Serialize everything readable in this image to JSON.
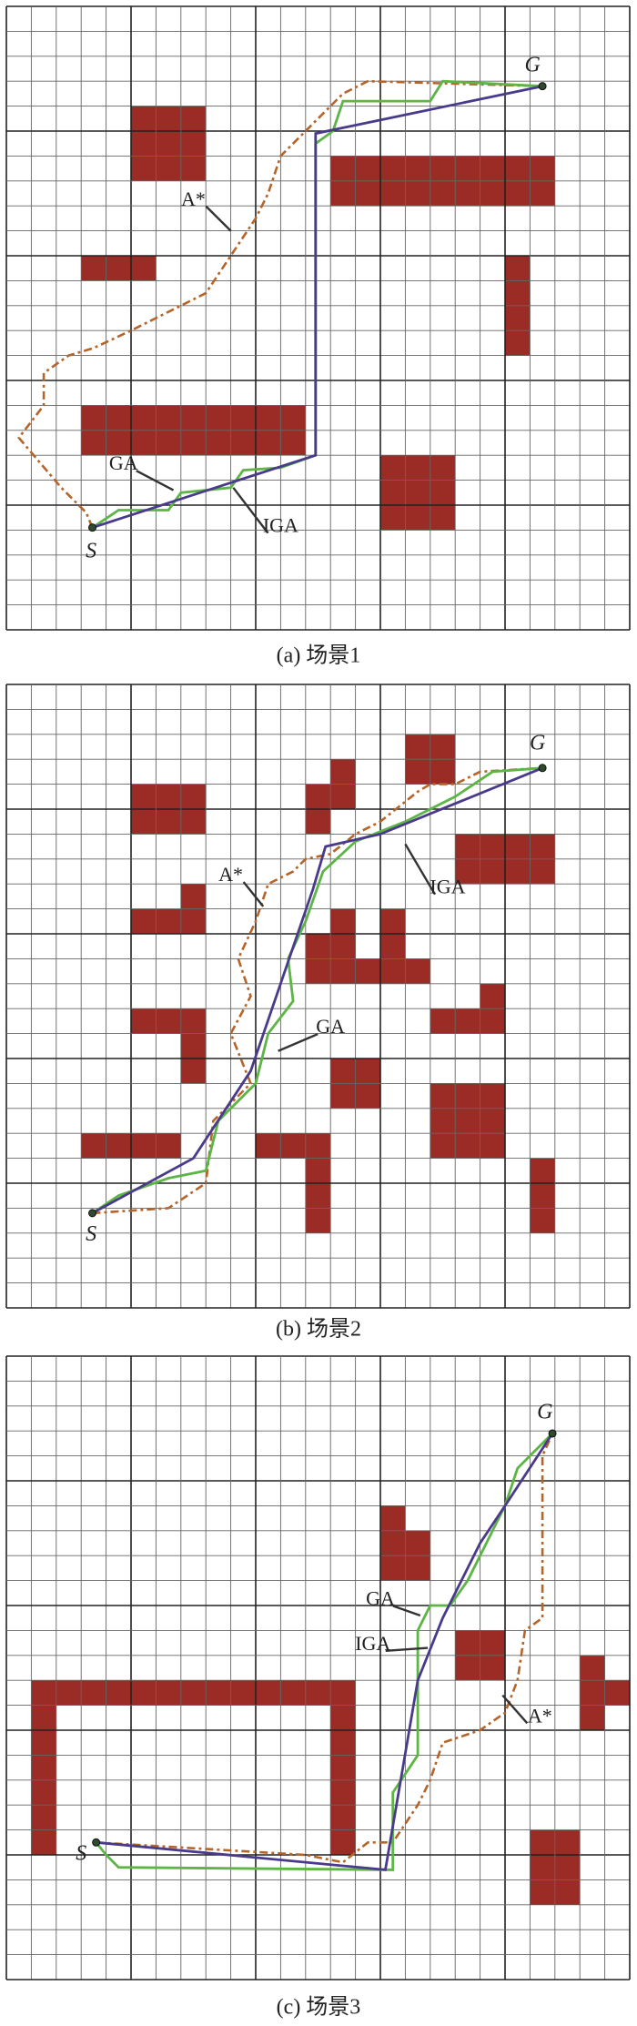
{
  "panels": [
    {
      "caption": "(a) 场景1",
      "labels": {
        "start": "S",
        "goal": "G",
        "astar": "A*",
        "ga": "GA",
        "iga": "IGA"
      }
    },
    {
      "caption": "(b) 场景2",
      "labels": {
        "start": "S",
        "goal": "G",
        "astar": "A*",
        "ga": "GA",
        "iga": "IGA"
      }
    },
    {
      "caption": "(c) 场景3",
      "labels": {
        "start": "S",
        "goal": "G",
        "astar": "A*",
        "ga": "GA",
        "iga": "IGA"
      }
    }
  ]
}
